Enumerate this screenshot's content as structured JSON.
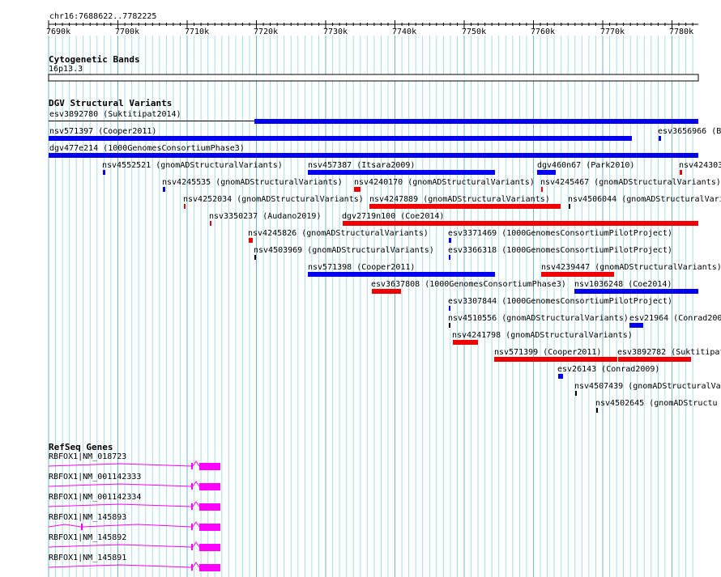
{
  "ruler": {
    "coordinates": "chr16:7688622..7782225",
    "ticks": [
      "7690k",
      "7700k",
      "7710k",
      "7720k",
      "7730k",
      "7740k",
      "7750k",
      "7760k",
      "7770k",
      "7780k"
    ]
  },
  "cytoband": {
    "title": "Cytogenetic Bands",
    "band": "16p13.3"
  },
  "dgv": {
    "title": "DGV Structural Variants",
    "colors": {
      "gain": "#0000ee",
      "loss": "#ee0000"
    },
    "features": [
      {
        "label": "esv3892780 (Suktitipat2014)",
        "color": "gain"
      },
      {
        "label": "esv3656966 (B",
        "color": "gain"
      },
      {
        "label": "nsv571397 (Cooper2011)",
        "color": "gain"
      },
      {
        "label": "dgv477e214 (1000GenomesConsortiumPhase3)",
        "color": "gain"
      },
      {
        "label": "nsv4552521 (gnomADStructuralVariants)",
        "color": "gain"
      },
      {
        "label": "nsv457387 (Itsara2009)",
        "color": "gain"
      },
      {
        "label": "dgv460n67 (Park2010)",
        "color": "gain"
      },
      {
        "label": "nsv424303",
        "color": "loss"
      },
      {
        "label": "nsv4245535 (gnomADStructuralVariants)",
        "color": "gain"
      },
      {
        "label": "nsv4240170 (gnomADStructuralVariants)",
        "color": "loss"
      },
      {
        "label": "nsv4245467 (gnomADStructuralVariants)",
        "color": "loss"
      },
      {
        "label": "nsv4252034 (gnomADStructuralVariants)",
        "color": "loss"
      },
      {
        "label": "nsv4247889 (gnomADStructuralVariants)",
        "color": "loss"
      },
      {
        "label": "nsv4506044 (gnomADStructuralVari",
        "color": "other"
      },
      {
        "label": "nsv3350237 (Audano2019)",
        "color": "loss"
      },
      {
        "label": "dgv2719n100 (Coe2014)",
        "color": "loss"
      },
      {
        "label": "nsv4245826 (gnomADStructuralVariants)",
        "color": "loss"
      },
      {
        "label": "esv3371469 (1000GenomesConsortiumPilotProject)",
        "color": "gain"
      },
      {
        "label": "nsv4503969 (gnomADStructuralVariants)",
        "color": "other"
      },
      {
        "label": "esv3366318 (1000GenomesConsortiumPilotProject)",
        "color": "gain"
      },
      {
        "label": "nsv571398 (Cooper2011)",
        "color": "gain"
      },
      {
        "label": "nsv4239447 (gnomADStructuralVariants)",
        "color": "loss"
      },
      {
        "label": "esv3637808 (1000GenomesConsortiumPhase3)",
        "color": "loss"
      },
      {
        "label": "nsv1036248 (Coe2014)",
        "color": "gain"
      },
      {
        "label": "esv3307844 (1000GenomesConsortiumPilotProject)",
        "color": "gain"
      },
      {
        "label": "nsv4510556 (gnomADStructuralVariants)",
        "color": "other"
      },
      {
        "label": "esv21964 (Conrad200",
        "color": "gain"
      },
      {
        "label": "nsv4241798 (gnomADStructuralVariants)",
        "color": "loss"
      },
      {
        "label": "nsv571399 (Cooper2011)",
        "color": "loss"
      },
      {
        "label": "esv3892782 (Suktitipat",
        "color": "loss"
      },
      {
        "label": "esv26143 (Conrad2009)",
        "color": "gain"
      },
      {
        "label": "nsv4507439 (gnomADStructuralVar",
        "color": "other"
      },
      {
        "label": "nsv4502645 (gnomADStructu",
        "color": "other"
      }
    ]
  },
  "refseq": {
    "title": "RefSeq Genes",
    "color": "#ff00ff",
    "genes": [
      {
        "label": "RBFOX1|NM_018723"
      },
      {
        "label": "RBFOX1|NM_001142333"
      },
      {
        "label": "RBFOX1|NM_001142334"
      },
      {
        "label": "RBFOX1|NM_145893"
      },
      {
        "label": "RBFOX1|NM_145892"
      },
      {
        "label": "RBFOX1|NM_145891"
      }
    ]
  }
}
